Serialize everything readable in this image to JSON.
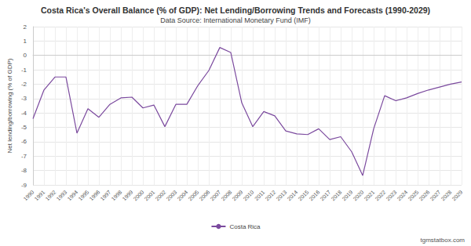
{
  "chart_data": {
    "type": "line",
    "title": "Costa Rica's Overall Balance (% of GDP): Net Lending/Borrowing Trends and Forecasts (1990-2029)",
    "subtitle": "Data Source: International Monetary Fund (IMF)",
    "y_label": "Net lending/borrowing (% of GDP)",
    "annotations": [
      "tgmstatbox.com"
    ],
    "categories": [
      "1990",
      "1991",
      "1992",
      "1993",
      "1994",
      "1995",
      "1996",
      "1997",
      "1998",
      "1999",
      "2000",
      "2001",
      "2002",
      "2003",
      "2004",
      "2005",
      "2006",
      "2007",
      "2008",
      "2009",
      "2010",
      "2011",
      "2012",
      "2013",
      "2014",
      "2015",
      "2016",
      "2017",
      "2018",
      "2019",
      "2020",
      "2021",
      "2022",
      "2023",
      "2024",
      "2025",
      "2026",
      "2027",
      "2028",
      "2029"
    ],
    "series": [
      {
        "name": "Costa Rica",
        "color": "#7b4a9e",
        "values": [
          -4.4,
          -2.4,
          -1.5,
          -1.5,
          -5.4,
          -3.7,
          -4.3,
          -3.4,
          -2.95,
          -2.9,
          -3.65,
          -3.45,
          -4.95,
          -3.4,
          -3.4,
          -2.1,
          -1.05,
          0.55,
          0.2,
          -3.3,
          -4.95,
          -3.9,
          -4.2,
          -5.25,
          -5.45,
          -5.5,
          -5.1,
          -5.85,
          -5.65,
          -6.7,
          -8.35,
          -5.1,
          -2.8,
          -3.15,
          -2.95,
          -2.65,
          -2.4,
          -2.2,
          -2.0,
          -1.85
        ]
      }
    ],
    "ylim": [
      -9,
      2
    ],
    "yticks": [
      -9,
      -8,
      -7,
      -6,
      -5,
      -4,
      -3,
      -2,
      -1,
      0,
      1,
      2
    ],
    "grid": true,
    "legend": "bottom"
  }
}
